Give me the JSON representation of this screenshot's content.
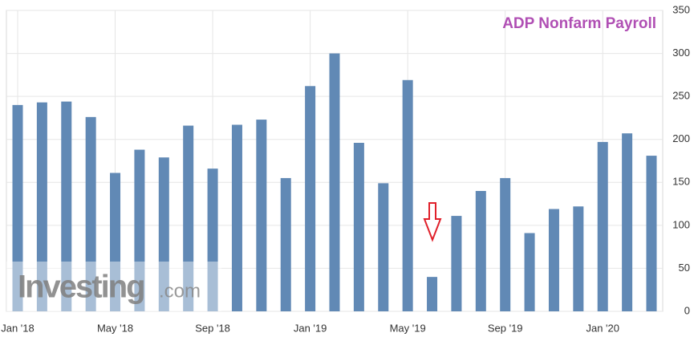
{
  "chart_data": {
    "type": "bar",
    "title": "ADP Nonfarm Payroll",
    "watermark": {
      "brand": "Investing",
      "suffix": ".com"
    },
    "categories": [
      "Jan '18",
      null,
      null,
      null,
      "May '18",
      null,
      null,
      null,
      "Sep '18",
      null,
      null,
      null,
      "Jan '19",
      null,
      null,
      null,
      "May '19",
      null,
      null,
      null,
      "Sep '19",
      null,
      null,
      null,
      "Jan '20",
      null,
      null
    ],
    "values": [
      240,
      243,
      244,
      226,
      161,
      188,
      179,
      216,
      166,
      217,
      223,
      155,
      262,
      300,
      196,
      149,
      269,
      40,
      111,
      140,
      155,
      91,
      119,
      122,
      197,
      207,
      181
    ],
    "color": "#6189b5",
    "ylim": [
      0,
      350
    ],
    "yticks": [
      0,
      50,
      100,
      150,
      200,
      250,
      300,
      350
    ],
    "grid": true
  }
}
